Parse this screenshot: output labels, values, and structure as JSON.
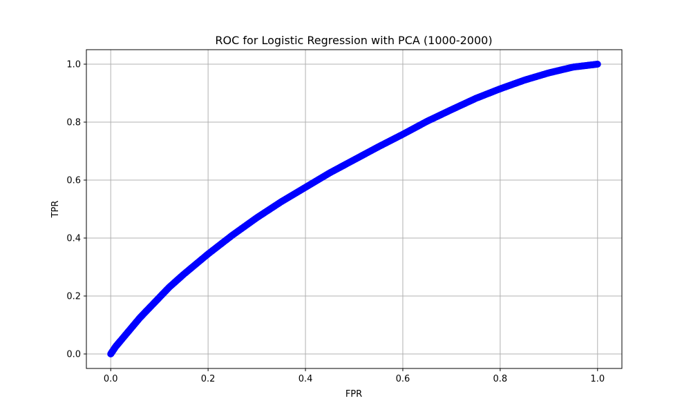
{
  "chart_data": {
    "type": "scatter",
    "title": "ROC for Logistic Regression with PCA (1000-2000)",
    "xlabel": "FPR",
    "ylabel": "TPR",
    "xlim": [
      -0.05,
      1.05
    ],
    "ylim": [
      -0.05,
      1.05
    ],
    "xticks": [
      0.0,
      0.2,
      0.4,
      0.6,
      0.8,
      1.0
    ],
    "yticks": [
      0.0,
      0.2,
      0.4,
      0.6,
      0.8,
      1.0
    ],
    "xtick_labels": [
      "0.0",
      "0.2",
      "0.4",
      "0.6",
      "0.8",
      "1.0"
    ],
    "ytick_labels": [
      "0.0",
      "0.2",
      "0.4",
      "0.6",
      "0.8",
      "1.0"
    ],
    "grid": true,
    "legend": "none",
    "series": [
      {
        "color": "#0000ff",
        "x": [
          0.0,
          0.01,
          0.02,
          0.04,
          0.06,
          0.08,
          0.1,
          0.12,
          0.15,
          0.2,
          0.25,
          0.3,
          0.35,
          0.4,
          0.45,
          0.5,
          0.55,
          0.6,
          0.65,
          0.7,
          0.75,
          0.8,
          0.85,
          0.9,
          0.95,
          1.0
        ],
        "y": [
          0.0,
          0.025,
          0.045,
          0.085,
          0.125,
          0.16,
          0.195,
          0.23,
          0.275,
          0.345,
          0.41,
          0.47,
          0.525,
          0.575,
          0.625,
          0.67,
          0.715,
          0.758,
          0.803,
          0.843,
          0.882,
          0.915,
          0.945,
          0.97,
          0.99,
          1.0
        ]
      }
    ]
  }
}
